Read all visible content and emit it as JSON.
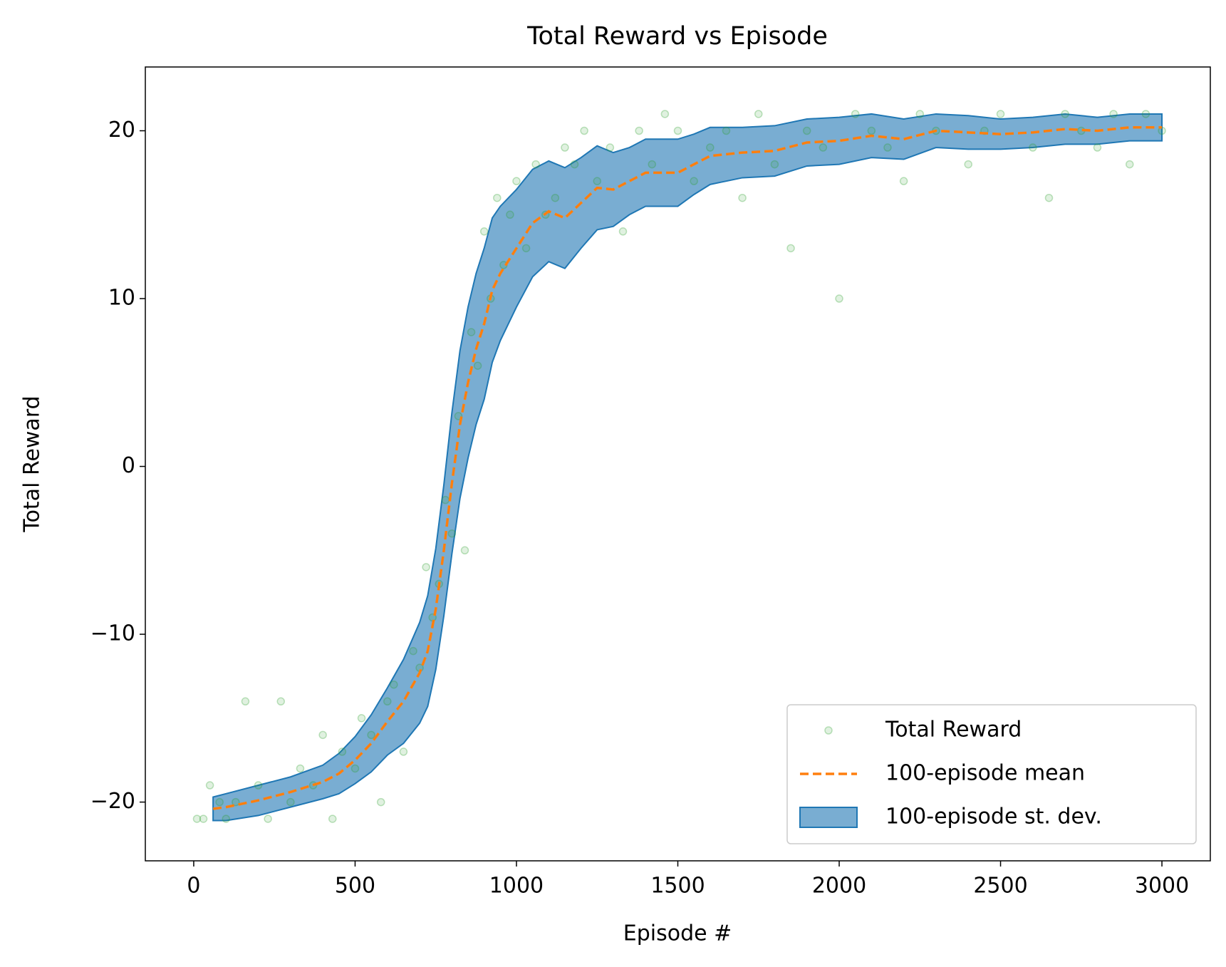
{
  "chart_data": {
    "type": "scatter-line-band",
    "title": "Total Reward vs Episode",
    "x_label": "Episode #",
    "y_label": "Total Reward",
    "xlim": [
      -150,
      3150
    ],
    "ylim": [
      -23.5,
      23.8
    ],
    "xticks": [
      0,
      500,
      1000,
      1500,
      2000,
      2500,
      3000
    ],
    "yticks": [
      {
        "value": -20,
        "label": "−20"
      },
      {
        "value": -10,
        "label": "−10"
      },
      0,
      10,
      20
    ],
    "legend": "lower right",
    "series": [
      {
        "name": "Total Reward",
        "color": "#2ca02c",
        "x": [
          10,
          30,
          50,
          80,
          100,
          130,
          160,
          200,
          230,
          270,
          300,
          330,
          370,
          400,
          430,
          460,
          500,
          520,
          550,
          580,
          600,
          620,
          650,
          680,
          700,
          720,
          740,
          760,
          780,
          800,
          820,
          840,
          860,
          880,
          900,
          920,
          940,
          960,
          980,
          1000,
          1030,
          1060,
          1090,
          1120,
          1150,
          1180,
          1210,
          1250,
          1290,
          1330,
          1380,
          1420,
          1460,
          1500,
          1550,
          1600,
          1650,
          1700,
          1750,
          1800,
          1850,
          1900,
          1950,
          2000,
          2050,
          2100,
          2150,
          2200,
          2250,
          2300,
          2400,
          2450,
          2500,
          2600,
          2650,
          2700,
          2750,
          2800,
          2850,
          2900,
          2950,
          3000
        ],
        "values": [
          -21,
          -21,
          -19,
          -20,
          -21,
          -20,
          -14,
          -19,
          -21,
          -14,
          -20,
          -18,
          -19,
          -16,
          -21,
          -17,
          -18,
          -15,
          -16,
          -20,
          -14,
          -13,
          -17,
          -11,
          -12,
          -6,
          -9,
          -7,
          -2,
          -4,
          3,
          -5,
          8,
          6,
          14,
          10,
          16,
          12,
          15,
          17,
          13,
          18,
          15,
          16,
          19,
          18,
          20,
          17,
          19,
          14,
          20,
          18,
          21,
          20,
          17,
          19,
          20,
          16,
          21,
          18,
          13,
          20,
          19,
          10,
          21,
          20,
          19,
          17,
          21,
          20,
          18,
          20,
          21,
          19,
          16,
          21,
          20,
          19,
          21,
          18,
          21,
          20
        ]
      },
      {
        "name": "100-episode mean",
        "color": "#ff7f0e",
        "x": [
          60,
          100,
          200,
          300,
          400,
          450,
          500,
          550,
          600,
          650,
          700,
          725,
          750,
          775,
          800,
          825,
          850,
          875,
          900,
          925,
          950,
          1000,
          1050,
          1100,
          1150,
          1200,
          1250,
          1300,
          1350,
          1400,
          1500,
          1550,
          1600,
          1700,
          1800,
          1900,
          2000,
          2100,
          2200,
          2300,
          2400,
          2500,
          2600,
          2700,
          2800,
          2900,
          3000
        ],
        "values": [
          -20.4,
          -20.3,
          -19.9,
          -19.4,
          -18.8,
          -18.3,
          -17.5,
          -16.5,
          -15.2,
          -14,
          -12.3,
          -11,
          -8.5,
          -5,
          -1,
          2.5,
          5,
          7,
          8.5,
          10.5,
          11.5,
          13,
          14.5,
          15.2,
          14.8,
          15.7,
          16.6,
          16.5,
          17,
          17.5,
          17.5,
          18,
          18.5,
          18.7,
          18.8,
          19.3,
          19.4,
          19.7,
          19.5,
          20,
          19.9,
          19.8,
          19.9,
          20.1,
          20,
          20.2,
          20.2
        ]
      },
      {
        "name": "100-episode st. dev.",
        "color": "#1f77b4",
        "x": [
          60,
          100,
          200,
          300,
          400,
          450,
          500,
          550,
          600,
          650,
          700,
          725,
          750,
          775,
          800,
          825,
          850,
          875,
          900,
          925,
          950,
          1000,
          1050,
          1100,
          1150,
          1200,
          1250,
          1300,
          1350,
          1400,
          1500,
          1550,
          1600,
          1700,
          1800,
          1900,
          2000,
          2100,
          2200,
          2300,
          2400,
          2500,
          2600,
          2700,
          2800,
          2900,
          3000
        ],
        "values": [
          0.7,
          0.8,
          0.9,
          0.9,
          1,
          1.2,
          1.4,
          1.7,
          2,
          2.5,
          3,
          3.3,
          3.6,
          3.9,
          4.2,
          4.4,
          4.5,
          4.5,
          4.5,
          4.3,
          4,
          3.5,
          3.2,
          3,
          3,
          2.7,
          2.5,
          2.2,
          2,
          2,
          2,
          1.8,
          1.7,
          1.5,
          1.5,
          1.4,
          1.4,
          1.3,
          1.2,
          1,
          1,
          0.9,
          0.9,
          0.9,
          0.8,
          0.8,
          0.8
        ]
      }
    ]
  }
}
